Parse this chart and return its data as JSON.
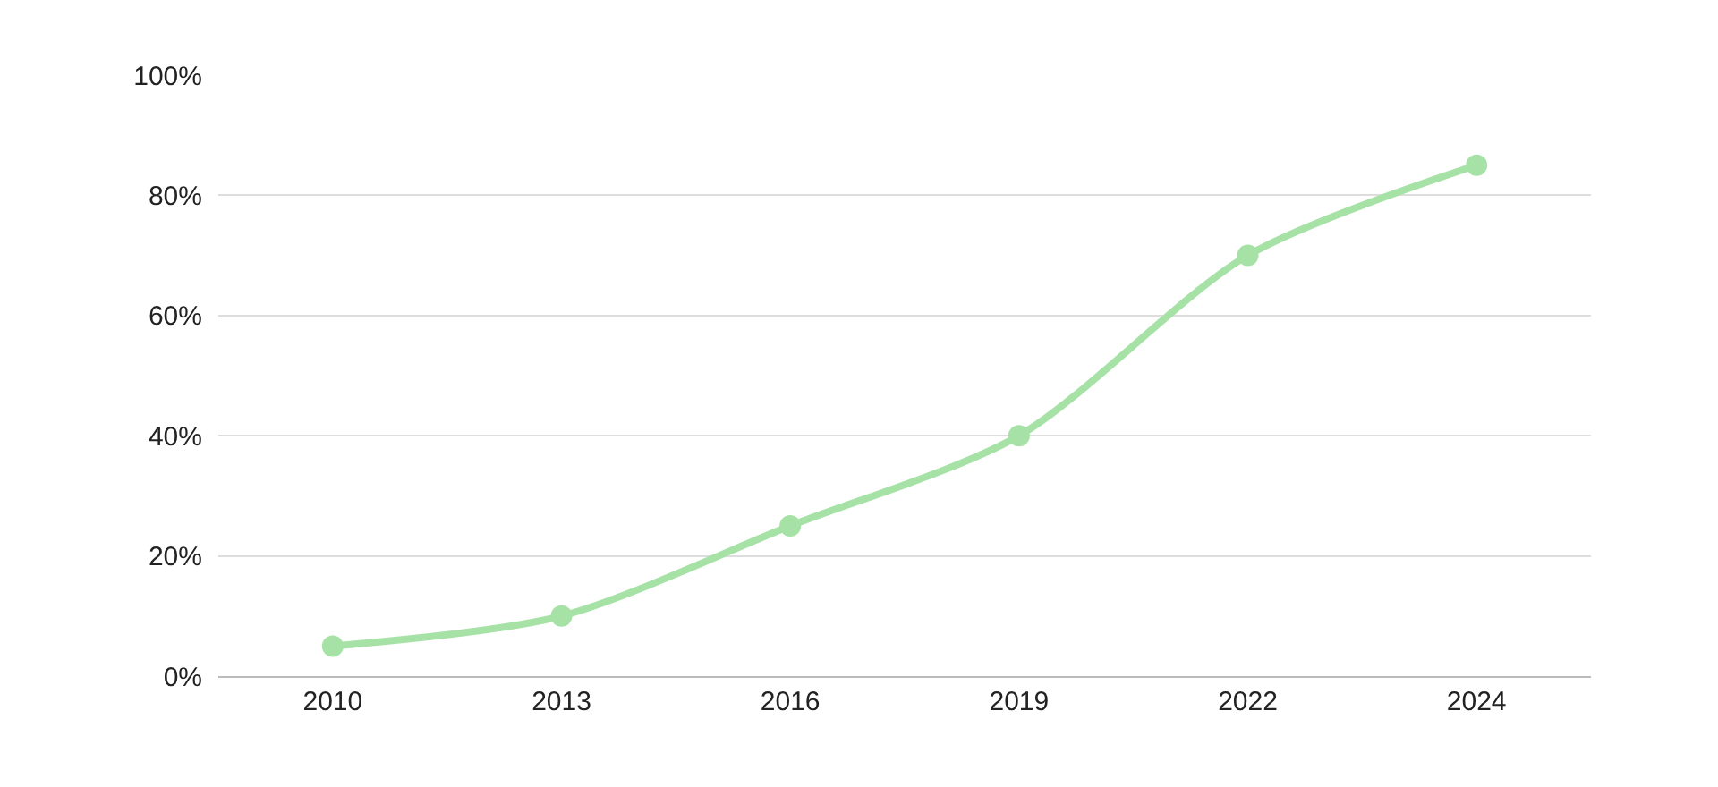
{
  "chart_data": {
    "type": "line",
    "categories": [
      "2010",
      "2013",
      "2016",
      "2019",
      "2022",
      "2024"
    ],
    "series": [
      {
        "color": "#a6e2a6",
        "values": [
          5,
          10,
          25,
          40,
          70,
          85
        ]
      }
    ],
    "ylim": [
      0,
      100
    ],
    "yticks": [
      {
        "value": 0,
        "label": "0%"
      },
      {
        "value": 20,
        "label": "20%"
      },
      {
        "value": 40,
        "label": "40%"
      },
      {
        "value": 60,
        "label": "60%"
      },
      {
        "value": 80,
        "label": "80%"
      },
      {
        "value": 100,
        "label": "100%"
      }
    ],
    "grid": "y",
    "marker": "circle",
    "line_style": "solid",
    "legend": false
  }
}
